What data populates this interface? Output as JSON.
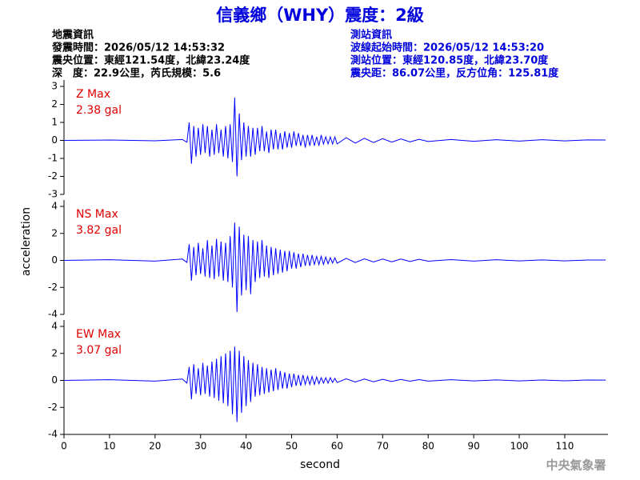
{
  "header": {
    "title": "信義鄉（WHY）震度：2級",
    "left": [
      "地震資訊",
      "發震時間：2026/05/12 14:53:32",
      "震央位置：東經121.54度，北緯23.24度",
      "深　度：22.9公里，芮氏規模：5.6"
    ],
    "right": [
      "測站資訊",
      "波線起始時間：2026/05/12 14:53:20",
      "測站位置：東經120.85度，北緯23.70度",
      "震央距：86.07公里，反方位角：125.81度"
    ],
    "footer": "中央氣象署"
  },
  "chart_data": {
    "type": "line",
    "xlabel": "second",
    "ylabel": "acceleration",
    "xlim": [
      0,
      119.5
    ],
    "xticks": [
      0,
      10,
      20,
      30,
      40,
      50,
      60,
      70,
      80,
      90,
      100,
      110
    ],
    "x": [
      0,
      10,
      20,
      26,
      27,
      27.5,
      28,
      28.5,
      29,
      29.5,
      30,
      30.5,
      31,
      31.5,
      32,
      32.5,
      33,
      33.5,
      34,
      34.5,
      35,
      35.5,
      36,
      36.5,
      37,
      37.5,
      38,
      38.5,
      39,
      39.5,
      40,
      40.5,
      41,
      41.5,
      42,
      42.5,
      43,
      43.5,
      44,
      44.5,
      45,
      45.5,
      46,
      46.5,
      47,
      47.5,
      48,
      48.5,
      49,
      49.5,
      50,
      50.5,
      51,
      51.5,
      52,
      52.5,
      53,
      53.5,
      54,
      54.5,
      55,
      55.5,
      56,
      56.5,
      57,
      57.5,
      58,
      58.5,
      59,
      59.5,
      60,
      62,
      64,
      66,
      68,
      70,
      72,
      74,
      76,
      78,
      80,
      85,
      90,
      95,
      100,
      105,
      110,
      115,
      119
    ],
    "panels": [
      {
        "annotations": [
          "Z Max",
          "2.38 gal"
        ],
        "color": "#0000ff",
        "ylim": [
          -3,
          3
        ],
        "yticks": [
          -3,
          -2,
          -1,
          0,
          1,
          2,
          3
        ],
        "values": [
          0,
          0.02,
          -0.02,
          0.05,
          -0.1,
          1.0,
          -1.3,
          0.8,
          -0.9,
          0.7,
          -0.8,
          0.9,
          -0.7,
          0.8,
          -0.9,
          0.6,
          -0.8,
          0.9,
          -0.7,
          0.6,
          -0.9,
          0.8,
          -1.0,
          0.9,
          -1.2,
          2.38,
          -2.0,
          1.5,
          -1.1,
          1.0,
          -0.9,
          0.8,
          -0.9,
          0.7,
          -0.8,
          0.7,
          -0.6,
          0.8,
          -0.6,
          0.5,
          -0.7,
          0.6,
          -0.5,
          0.6,
          -0.5,
          0.4,
          -0.5,
          0.5,
          -0.4,
          0.4,
          -0.4,
          0.5,
          -0.3,
          0.4,
          -0.3,
          0.3,
          -0.4,
          0.3,
          -0.3,
          0.3,
          -0.3,
          0.2,
          -0.3,
          0.3,
          -0.2,
          0.2,
          -0.2,
          0.2,
          -0.2,
          0.2,
          -0.2,
          0.15,
          -0.15,
          0.12,
          -0.12,
          0.1,
          -0.1,
          0.08,
          -0.08,
          0.06,
          -0.06,
          0.05,
          -0.05,
          0.04,
          -0.04,
          0.04,
          -0.03,
          0.03,
          0.02
        ]
      },
      {
        "annotations": [
          "NS Max",
          "3.82 gal"
        ],
        "color": "#0000ff",
        "ylim": [
          -4,
          4
        ],
        "yticks": [
          -4,
          -2,
          0,
          2,
          4
        ],
        "values": [
          0,
          0.05,
          -0.05,
          0.1,
          -0.15,
          1.2,
          -1.5,
          1.0,
          -1.1,
          1.3,
          -1.0,
          0.9,
          -1.2,
          1.5,
          -1.3,
          1.1,
          -1.4,
          1.6,
          -1.2,
          1.4,
          -1.5,
          1.3,
          -1.6,
          1.8,
          -2.0,
          2.8,
          -3.82,
          2.5,
          -2.6,
          1.9,
          -2.2,
          1.8,
          -2.5,
          1.5,
          -1.6,
          1.4,
          -1.3,
          1.5,
          -1.2,
          1.1,
          -1.3,
          1.0,
          -1.1,
          0.9,
          -1.0,
          0.8,
          -0.9,
          0.7,
          -0.8,
          0.7,
          -0.6,
          0.6,
          -0.6,
          0.5,
          -0.5,
          0.5,
          -0.4,
          0.4,
          -0.4,
          0.4,
          -0.3,
          0.3,
          -0.3,
          0.3,
          -0.3,
          0.25,
          -0.25,
          0.2,
          -0.2,
          0.2,
          -0.2,
          0.15,
          -0.15,
          0.12,
          -0.12,
          0.1,
          -0.1,
          0.1,
          -0.08,
          0.08,
          -0.06,
          0.06,
          -0.05,
          0.05,
          -0.04,
          0.04,
          -0.04,
          0.03,
          0.03
        ]
      },
      {
        "annotations": [
          "EW Max",
          "3.07 gal"
        ],
        "color": "#0000ff",
        "ylim": [
          -4,
          4
        ],
        "yticks": [
          -4,
          -2,
          0,
          2,
          4
        ],
        "values": [
          0,
          0.05,
          -0.05,
          0.1,
          -0.2,
          1.0,
          -1.4,
          1.2,
          -1.0,
          0.9,
          -1.1,
          1.3,
          -1.0,
          1.1,
          -1.2,
          1.4,
          -1.3,
          1.6,
          -1.5,
          1.8,
          -1.7,
          2.0,
          -1.9,
          2.2,
          -2.5,
          2.5,
          -3.07,
          2.2,
          -2.4,
          1.8,
          -1.9,
          1.5,
          -1.6,
          1.3,
          -1.2,
          1.2,
          -1.1,
          1.0,
          -1.0,
          0.9,
          -0.9,
          0.8,
          -0.8,
          0.9,
          -0.7,
          0.7,
          -0.6,
          0.6,
          -0.6,
          0.5,
          -0.5,
          0.5,
          -0.4,
          0.4,
          -0.4,
          0.4,
          -0.3,
          0.3,
          -0.3,
          0.3,
          -0.3,
          0.25,
          -0.25,
          0.2,
          -0.2,
          0.2,
          -0.2,
          0.2,
          -0.15,
          0.15,
          -0.15,
          0.12,
          -0.12,
          0.1,
          -0.1,
          0.08,
          -0.08,
          0.07,
          -0.06,
          0.06,
          -0.05,
          0.05,
          -0.04,
          0.04,
          -0.04,
          0.03,
          -0.03,
          0.03,
          0.02
        ]
      }
    ]
  }
}
